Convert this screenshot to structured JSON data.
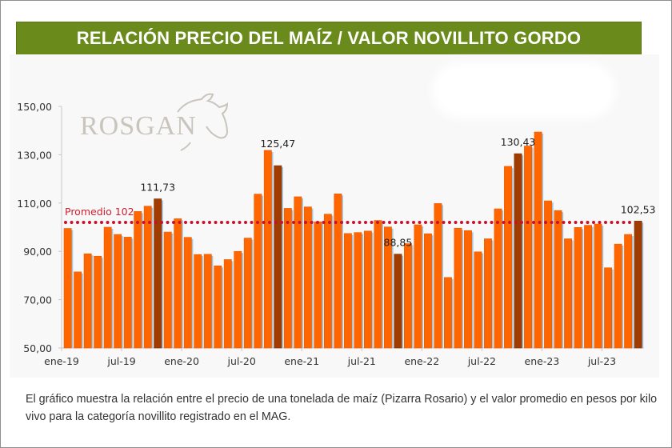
{
  "header": {
    "title": "RELACIÓN PRECIO DEL MAÍZ / VALOR NOVILLITO GORDO"
  },
  "logo": {
    "text": "ROSGAN"
  },
  "caption": "El gráfico muestra la relación entre el precio de una tonelada de maíz (Pizarra Rosario) y el valor promedio en pesos por kilo vivo para la categoría novillito registrado en el MAG.",
  "colors": {
    "bar": "#ff6600",
    "highlight": "#a03c00",
    "average_line": "#c8102e",
    "banner": "#6a8a1c"
  },
  "chart_data": {
    "type": "bar",
    "title": "RELACIÓN PRECIO DEL MAÍZ / VALOR NOVILLITO GORDO",
    "xlabel": "",
    "ylabel": "",
    "ylim": [
      50,
      150
    ],
    "yticks": [
      "50,00",
      "70,00",
      "90,00",
      "110,00",
      "130,00",
      "150,00"
    ],
    "ytick_values": [
      50,
      70,
      90,
      110,
      130,
      150
    ],
    "xtick_labels": [
      "ene-19",
      "jul-19",
      "ene-20",
      "jul-20",
      "ene-21",
      "jul-21",
      "ene-22",
      "jul-22",
      "ene-23",
      "jul-23"
    ],
    "xtick_index": [
      0,
      6,
      12,
      18,
      24,
      30,
      36,
      42,
      48,
      54
    ],
    "values": [
      99.5,
      81.5,
      89,
      88,
      100,
      97,
      95.9,
      106.5,
      108.7,
      111.73,
      98,
      103.5,
      95.8,
      88.7,
      88.8,
      84,
      86.6,
      90,
      95.5,
      113.7,
      131.8,
      125.47,
      107.8,
      112.6,
      108.4,
      102.2,
      105.4,
      113.8,
      97.4,
      97.8,
      98.4,
      102.8,
      100.1,
      88.85,
      93.2,
      101,
      97.3,
      109.8,
      79.2,
      99.6,
      98.6,
      89.8,
      95.2,
      107.6,
      125.2,
      130.43,
      133.6,
      139.4,
      110.9,
      106.9,
      95.2,
      99.9,
      100.8,
      101.3,
      83.2,
      93,
      97,
      102.53
    ],
    "highlight_index": [
      9,
      21,
      33,
      45,
      57
    ],
    "average": {
      "value": 102,
      "label": "Promedio 102"
    },
    "data_labels": [
      {
        "index": 9,
        "text": "111,73"
      },
      {
        "index": 21,
        "text": "125,47"
      },
      {
        "index": 33,
        "text": "88,85"
      },
      {
        "index": 45,
        "text": "130,43"
      },
      {
        "index": 57,
        "text": "102,53"
      }
    ],
    "grid": false,
    "legend": "none"
  }
}
